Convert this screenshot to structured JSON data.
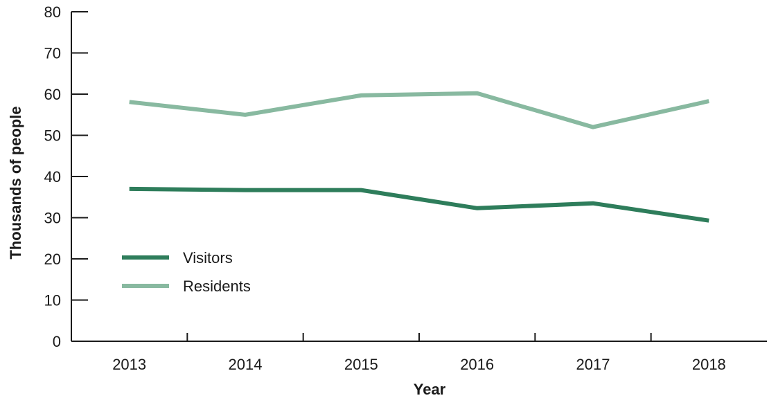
{
  "chart_data": {
    "type": "line",
    "title": "",
    "xlabel": "Year",
    "ylabel": "Thousands of people",
    "x": [
      "2013",
      "2014",
      "2015",
      "2016",
      "2017",
      "2018"
    ],
    "ylim": [
      0,
      80
    ],
    "yticks": [
      0,
      10,
      20,
      30,
      40,
      50,
      60,
      70,
      80
    ],
    "grid": false,
    "legend": "bottom-left",
    "series": [
      {
        "name": "Visitors",
        "color": "#2e7d5b",
        "values": [
          37,
          36.7,
          36.7,
          32.3,
          33.5,
          29.3
        ]
      },
      {
        "name": "Residents",
        "color": "#88b9a0",
        "values": [
          58.1,
          55,
          59.7,
          60.2,
          52,
          58.3
        ]
      }
    ]
  }
}
